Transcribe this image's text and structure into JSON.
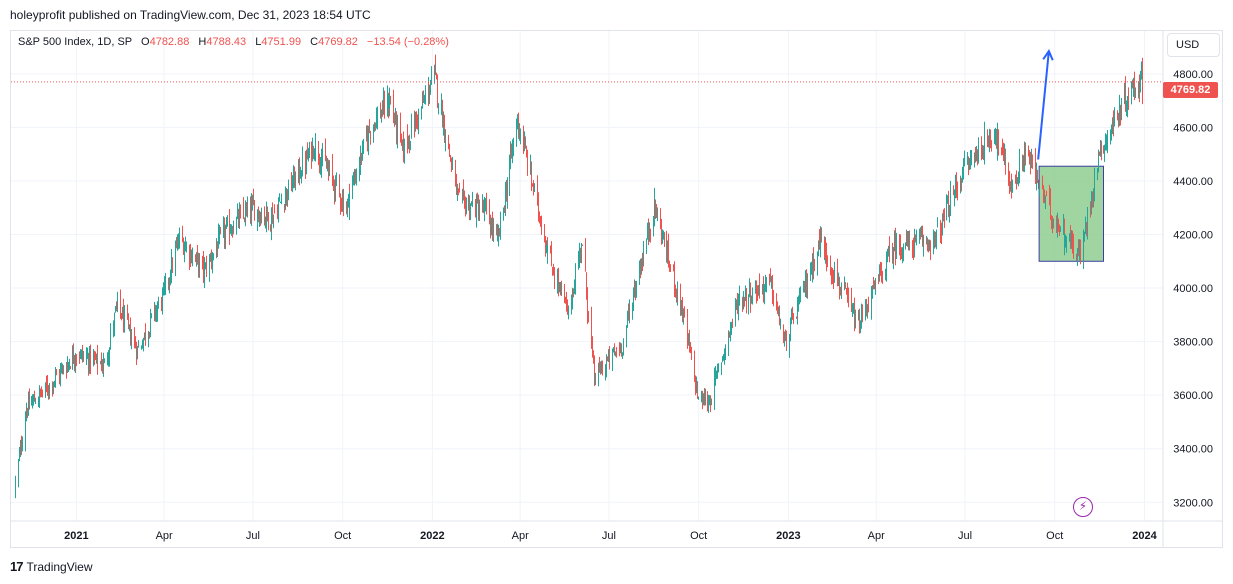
{
  "publisher_line": "holeyprofit published on TradingView.com, Dec 31, 2023 18:54 UTC",
  "legend": {
    "symbol": "S&P 500 Index, 1D, SP",
    "open_label": "O",
    "open": "4782.88",
    "high_label": "H",
    "high": "4788.43",
    "low_label": "L",
    "low": "4751.99",
    "close_label": "C",
    "close": "4769.82",
    "change": "−13.54 (−0.28%)"
  },
  "currency_button": "USD",
  "last_price_label": "4769.82",
  "footer_logo_mark": "17",
  "footer_logo_text": "TradingView",
  "colors": {
    "up": "#26a69a",
    "down": "#ef5350",
    "grid": "#f0f3fa",
    "arrow": "#2962ff",
    "box_fill": "#8fcc8f",
    "box_stroke": "#3f3fa0",
    "text": "#131722",
    "flash": "#9c27b0"
  },
  "chart_data": {
    "type": "candlestick",
    "title": "S&P 500 Index, 1D, SP",
    "ylim": [
      3130,
      4960
    ],
    "y_ticks": [
      3200,
      3400,
      3600,
      3800,
      4000,
      4200,
      4400,
      4600,
      4800
    ],
    "y_tick_labels": [
      "3200.00",
      "3400.00",
      "3600.00",
      "3800.00",
      "4000.00",
      "4200.00",
      "4400.00",
      "4600.00",
      "4800.00"
    ],
    "x_range": [
      "2020-10-26",
      "2024-01-20"
    ],
    "x_ticks": [
      {
        "date": "2021-01-01",
        "label": "2021",
        "bold": true
      },
      {
        "date": "2021-04-01",
        "label": "Apr",
        "bold": false
      },
      {
        "date": "2021-07-01",
        "label": "Jul",
        "bold": false
      },
      {
        "date": "2021-10-01",
        "label": "Oct",
        "bold": false
      },
      {
        "date": "2022-01-01",
        "label": "2022",
        "bold": true
      },
      {
        "date": "2022-04-01",
        "label": "Apr",
        "bold": false
      },
      {
        "date": "2022-07-01",
        "label": "Jul",
        "bold": false
      },
      {
        "date": "2022-10-01",
        "label": "Oct",
        "bold": false
      },
      {
        "date": "2023-01-01",
        "label": "2023",
        "bold": true
      },
      {
        "date": "2023-04-01",
        "label": "Apr",
        "bold": false
      },
      {
        "date": "2023-07-01",
        "label": "Jul",
        "bold": false
      },
      {
        "date": "2023-10-01",
        "label": "Oct",
        "bold": false
      },
      {
        "date": "2024-01-01",
        "label": "2024",
        "bold": true
      }
    ],
    "close_path": [
      [
        "2020-10-30",
        3270
      ],
      [
        "2020-11-03",
        3370
      ],
      [
        "2020-11-10",
        3550
      ],
      [
        "2020-11-30",
        3620
      ],
      [
        "2020-12-31",
        3756
      ],
      [
        "2021-01-29",
        3714
      ],
      [
        "2021-02-12",
        3934
      ],
      [
        "2021-03-04",
        3768
      ],
      [
        "2021-03-31",
        3973
      ],
      [
        "2021-04-16",
        4185
      ],
      [
        "2021-05-12",
        4063
      ],
      [
        "2021-05-31",
        4204
      ],
      [
        "2021-06-30",
        4297
      ],
      [
        "2021-07-19",
        4258
      ],
      [
        "2021-08-31",
        4522
      ],
      [
        "2021-09-02",
        4537
      ],
      [
        "2021-10-04",
        4300
      ],
      [
        "2021-10-29",
        4605
      ],
      [
        "2021-11-18",
        4704
      ],
      [
        "2021-12-01",
        4513
      ],
      [
        "2021-12-31",
        4766
      ],
      [
        "2022-01-03",
        4796
      ],
      [
        "2022-01-27",
        4326
      ],
      [
        "2022-02-24",
        4288
      ],
      [
        "2022-03-08",
        4170
      ],
      [
        "2022-03-29",
        4631
      ],
      [
        "2022-04-29",
        4131
      ],
      [
        "2022-05-20",
        3901
      ],
      [
        "2022-06-02",
        4176
      ],
      [
        "2022-06-16",
        3666
      ],
      [
        "2022-07-14",
        3790
      ],
      [
        "2022-08-16",
        4305
      ],
      [
        "2022-09-13",
        3932
      ],
      [
        "2022-09-30",
        3585
      ],
      [
        "2022-10-12",
        3577
      ],
      [
        "2022-11-10",
        3956
      ],
      [
        "2022-12-13",
        4019
      ],
      [
        "2022-12-28",
        3783
      ],
      [
        "2023-02-02",
        4179
      ],
      [
        "2023-03-13",
        3855
      ],
      [
        "2023-04-18",
        4154
      ],
      [
        "2023-05-31",
        4179
      ],
      [
        "2023-06-30",
        4450
      ],
      [
        "2023-07-31",
        4589
      ],
      [
        "2023-08-18",
        4369
      ],
      [
        "2023-09-01",
        4515
      ],
      [
        "2023-09-27",
        4274
      ],
      [
        "2023-10-27",
        4117
      ],
      [
        "2023-11-14",
        4495
      ],
      [
        "2023-12-14",
        4719
      ],
      [
        "2023-12-28",
        4783
      ],
      [
        "2023-12-29",
        4769.82
      ]
    ],
    "last_close": 4769.82,
    "annotations": [
      {
        "type": "arrow",
        "from": [
          "2023-09-14",
          4480
        ],
        "to": [
          "2023-09-25",
          4885
        ]
      },
      {
        "type": "box",
        "x": [
          "2023-09-15",
          "2023-11-20"
        ],
        "y": [
          4100,
          4455
        ]
      }
    ]
  }
}
